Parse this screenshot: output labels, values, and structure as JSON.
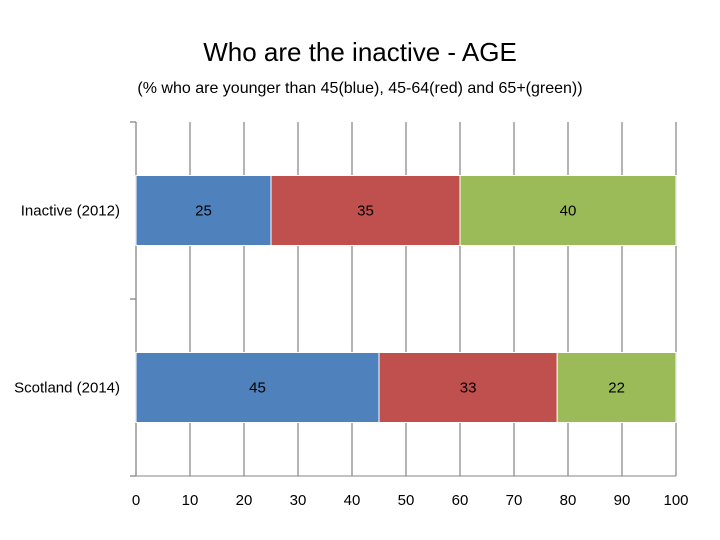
{
  "title": "Who are the inactive - AGE",
  "subtitle": "(% who are younger than 45(blue), 45-64(red) and 65+(green))",
  "colors": {
    "blue": "#4f81bd",
    "red": "#c0504d",
    "green": "#9bbb59",
    "grid": "#8c8c8c",
    "axis": "#868686"
  },
  "chart_data": {
    "type": "bar",
    "orientation": "horizontal",
    "stacked": true,
    "title": "Who are the inactive - AGE",
    "subtitle": "(% who are younger than 45(blue), 45-64(red) and 65+(green))",
    "categories": [
      "Inactive (2012)",
      "Scotland (2014)"
    ],
    "series": [
      {
        "values": [
          25,
          45
        ],
        "color": "#4f81bd"
      },
      {
        "values": [
          35,
          33
        ],
        "color": "#c0504d"
      },
      {
        "values": [
          40,
          22
        ],
        "color": "#9bbb59"
      }
    ],
    "data_labels": [
      [
        "25",
        "35",
        "40"
      ],
      [
        "45",
        "33",
        "22"
      ]
    ],
    "xlim": [
      0,
      100
    ],
    "xticks": [
      0,
      10,
      20,
      30,
      40,
      50,
      60,
      70,
      80,
      90,
      100
    ],
    "xtick_labels": [
      "0",
      "10",
      "20",
      "30",
      "40",
      "50",
      "60",
      "70",
      "80",
      "90",
      "100"
    ],
    "grid": true,
    "legend": "none"
  }
}
